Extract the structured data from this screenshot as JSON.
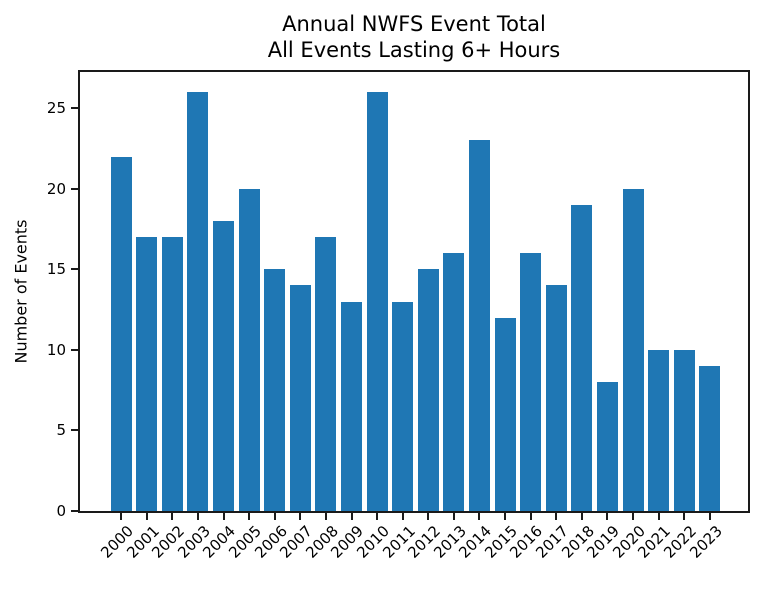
{
  "chart_data": {
    "type": "bar",
    "title_lines": [
      "Annual NWFS Event Total",
      "All Events Lasting 6+ Hours"
    ],
    "title": "Annual NWFS Event Total\nAll Events Lasting 6+ Hours",
    "xlabel": "",
    "ylabel": "Number of Events",
    "categories": [
      "2000",
      "2001",
      "2002",
      "2003",
      "2004",
      "2005",
      "2006",
      "2007",
      "2008",
      "2009",
      "2010",
      "2011",
      "2012",
      "2013",
      "2014",
      "2015",
      "2016",
      "2017",
      "2018",
      "2019",
      "2020",
      "2021",
      "2022",
      "2023"
    ],
    "values": [
      22,
      17,
      17,
      26,
      18,
      20,
      15,
      14,
      17,
      13,
      26,
      13,
      15,
      16,
      23,
      12,
      16,
      14,
      19,
      8,
      20,
      10,
      10,
      9
    ],
    "yticks": [
      0,
      5,
      10,
      15,
      20,
      25
    ],
    "ylim": [
      0,
      27.5
    ],
    "x_tick_rotation_deg": 45,
    "grid": false,
    "legend": null,
    "bar_color": "#1f77b4",
    "axis_color": "#1a1a1a",
    "background_color": "#ffffff"
  }
}
